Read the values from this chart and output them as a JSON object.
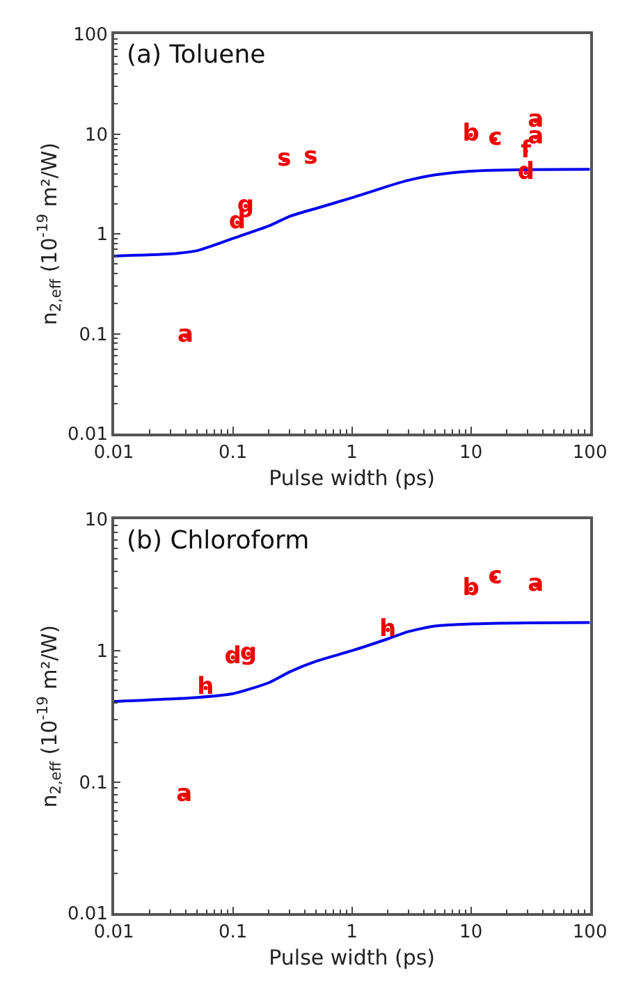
{
  "chart_data": [
    {
      "type": "line",
      "title": "(a) Toluene",
      "xlabel": "Pulse width (ps)",
      "ylabel": "n$_{2,eff}$ (10$^{-19}$ m²/W)",
      "log": "xy",
      "xlim": [
        0.01,
        100
      ],
      "ylim": [
        0.01,
        100
      ],
      "xticks": [
        0.01,
        0.1,
        1,
        10,
        100
      ],
      "yticks": [
        0.01,
        0.1,
        1,
        10,
        100
      ],
      "series": [
        {
          "color": "#0000ee",
          "marker": "none",
          "x": [
            0.01,
            0.03,
            0.05,
            0.1,
            0.2,
            0.3,
            0.5,
            1,
            2,
            3,
            5,
            10,
            30,
            100
          ],
          "values": [
            0.6,
            0.63,
            0.68,
            0.9,
            1.2,
            1.5,
            1.8,
            2.3,
            3.0,
            3.45,
            3.9,
            4.25,
            4.4,
            4.44
          ]
        },
        {
          "type": "scatter",
          "color": "#ee0000",
          "marker": "circle",
          "x": [
            0.04,
            0.109,
            0.128,
            0.27,
            0.45,
            10,
            16,
            35,
            35,
            29,
            29
          ],
          "values": [
            0.095,
            1.3,
            1.9,
            5.5,
            5.8,
            9.8,
            8.9,
            13.5,
            9.3,
            6.7,
            4.1
          ],
          "value_labels": [
            "a",
            "d",
            "g",
            "s",
            "s",
            "b",
            "c",
            "a",
            "a",
            "f",
            "d"
          ]
        }
      ]
    },
    {
      "type": "line",
      "title": "(b) Chloroform",
      "xlabel": "Pulse width (ps)",
      "ylabel": "n$_{2,eff}$ (10$^{-19}$ m²/W)",
      "log": "xy",
      "xlim": [
        0.01,
        100
      ],
      "ylim": [
        0.01,
        10
      ],
      "xticks": [
        0.01,
        0.1,
        1,
        10,
        100
      ],
      "yticks": [
        0.01,
        0.1,
        1,
        10
      ],
      "series": [
        {
          "color": "#0000ee",
          "marker": "none",
          "x": [
            0.01,
            0.05,
            0.1,
            0.2,
            0.3,
            0.5,
            1,
            2,
            3,
            5,
            10,
            30,
            100
          ],
          "values": [
            0.41,
            0.44,
            0.47,
            0.57,
            0.69,
            0.83,
            1.0,
            1.23,
            1.4,
            1.54,
            1.6,
            1.63,
            1.64
          ]
        },
        {
          "type": "scatter",
          "color": "#ee0000",
          "marker": "circle",
          "x": [
            0.039,
            0.059,
            0.1,
            0.135,
            2,
            10,
            16,
            35
          ],
          "values": [
            0.079,
            0.52,
            0.89,
            0.95,
            1.44,
            2.95,
            3.6,
            3.15
          ],
          "value_labels": [
            "a",
            "h",
            "d",
            "g",
            "h",
            "b",
            "c",
            "a"
          ]
        }
      ]
    }
  ]
}
